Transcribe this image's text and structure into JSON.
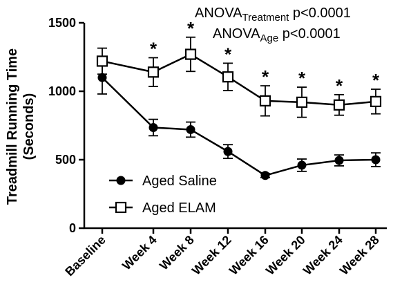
{
  "chart_data": {
    "type": "line",
    "ylabel_line1": "Treadmill Running Time",
    "ylabel_line2": "(Seconds)",
    "ylim": [
      0,
      1500
    ],
    "yticks": [
      "0",
      "500",
      "1000",
      "1500"
    ],
    "categories": [
      "Baseline",
      "Week 4",
      "Week 8",
      "Week 12",
      "Week 16",
      "Week 20",
      "Week 24",
      "Week 28"
    ],
    "series": [
      {
        "name": "Aged Saline",
        "marker": "filled-circle",
        "values": [
          1100,
          735,
          720,
          560,
          385,
          460,
          495,
          500
        ],
        "errors": [
          120,
          60,
          55,
          50,
          15,
          45,
          40,
          50
        ]
      },
      {
        "name": "Aged ELAM",
        "marker": "open-square",
        "values": [
          1220,
          1140,
          1270,
          1105,
          930,
          920,
          900,
          925
        ],
        "errors": [
          95,
          105,
          125,
          100,
          110,
          110,
          75,
          90
        ]
      }
    ],
    "significance": [
      "",
      "*",
      "*",
      "*",
      "*",
      "*",
      "*",
      "*"
    ],
    "annotations": {
      "line1_main": "ANOVA",
      "line1_sub": "Treatment",
      "line1_rest": " p<0.0001",
      "line2_main": "ANOVA",
      "line2_sub": "Age",
      "line2_rest": " p<0.0001"
    },
    "legend_position": "bottom-left",
    "grid": false
  }
}
